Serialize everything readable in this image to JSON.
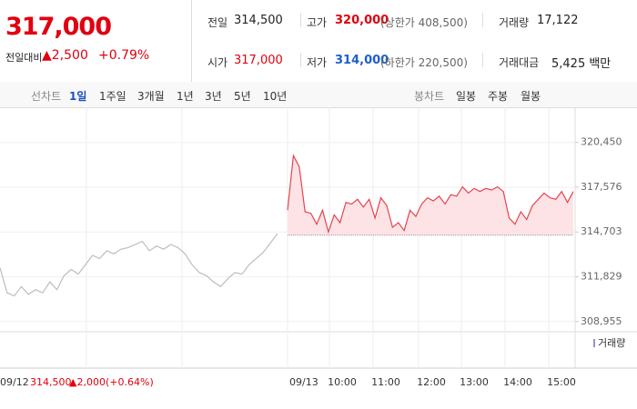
{
  "quote": {
    "price": "317,000",
    "change_label": "전일대비",
    "change": "▲2,500",
    "change_rate": "+0.79%"
  },
  "stats": [
    {
      "label": "전일",
      "value": "314,500",
      "color": "#222222"
    },
    {
      "label": "고가",
      "value": "320,000",
      "note": "(상한가 408,500)",
      "color": "#e0000f"
    },
    {
      "label": "거래량",
      "value": "17,122",
      "color": "#222222"
    },
    {
      "label": "시가",
      "value": "317,000",
      "color": "#e0000f"
    },
    {
      "label": "저가",
      "value": "314,000",
      "note": "(하한가 220,500)",
      "color": "#1e5fd0"
    },
    {
      "label": "거래대금",
      "value": "5,425 백만",
      "color": "#222222"
    }
  ],
  "tabs": {
    "line_label": "선차트",
    "periods": [
      "1일",
      "1주일",
      "3개월",
      "1년",
      "3년",
      "5년",
      "10년"
    ],
    "active": 0,
    "candle_label": "봉차트",
    "candles": [
      "일봉",
      "주봉",
      "월봉"
    ]
  },
  "chart_data": {
    "type": "line",
    "ylim": [
      308300,
      322300
    ],
    "yticks": [
      {
        "value": 308955,
        "label": "308,955"
      },
      {
        "value": 311829,
        "label": "311,829"
      },
      {
        "value": 314703,
        "label": "314,703"
      },
      {
        "value": 317576,
        "label": "317,576"
      },
      {
        "value": 320450,
        "label": "320,450"
      }
    ],
    "x_labels": [
      "09/13",
      "10:00",
      "11:00",
      "12:00",
      "13:00",
      "14:00",
      "15:00"
    ],
    "volume_label": "거래량",
    "series": [
      {
        "color": "#bdbdbd",
        "values": [
          312400,
          310800,
          310600,
          311200,
          310700,
          311000,
          310800,
          311500,
          311000,
          311900,
          312300,
          312000,
          312600,
          313200,
          313000,
          313500,
          313300,
          313600,
          313700,
          313900,
          314100,
          313500,
          313800,
          313600,
          313900,
          313700,
          313300,
          312600,
          312100,
          311900,
          311500,
          311200,
          311700,
          312100,
          312000,
          312600,
          313000,
          313400,
          314000,
          314600
        ]
      },
      {
        "color": "#e8434e",
        "fill": "#fde3e5",
        "values": [
          316100,
          319600,
          318900,
          316000,
          315900,
          315200,
          316100,
          314700,
          315800,
          315300,
          316600,
          316500,
          316800,
          316300,
          316800,
          315600,
          316900,
          316400,
          315000,
          315300,
          314800,
          316100,
          315700,
          316500,
          316900,
          316700,
          317000,
          316500,
          317100,
          317000,
          317600,
          317200,
          317500,
          317300,
          317500,
          317400,
          317600,
          317300,
          315600,
          315200,
          316000,
          315500,
          316400,
          316800,
          317200,
          316900,
          316800,
          317300,
          316600,
          317300
        ]
      }
    ],
    "annotation": {
      "date": "09/12",
      "close": {
        "value": 314500,
        "label": "314,500"
      },
      "change": "▲2,000",
      "rate": "(+0.64%)"
    }
  }
}
